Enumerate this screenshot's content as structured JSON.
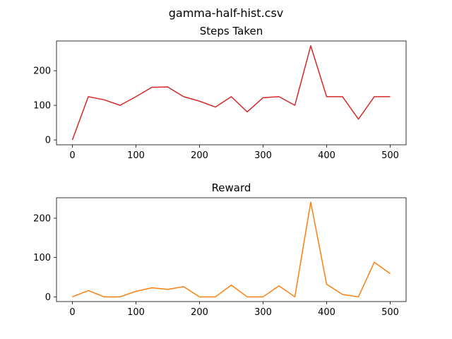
{
  "figure_title": "gamma-half-hist.csv",
  "chart_data": [
    {
      "type": "line",
      "title": "Steps Taken",
      "xlabel": "",
      "ylabel": "",
      "x": [
        0,
        25,
        50,
        75,
        100,
        125,
        150,
        175,
        200,
        225,
        250,
        275,
        300,
        325,
        350,
        375,
        400,
        425,
        450,
        475,
        500
      ],
      "series": [
        {
          "values": [
            0,
            125,
            116,
            100,
            125,
            152,
            153,
            125,
            112,
            95,
            125,
            81,
            122,
            125,
            100,
            272,
            125,
            125,
            60,
            125,
            125
          ],
          "color": "#d62728"
        }
      ],
      "xlim": [
        -25,
        525
      ],
      "ylim": [
        -14,
        286
      ],
      "xticks": [
        0,
        100,
        200,
        300,
        400,
        500
      ],
      "yticks": [
        0,
        100,
        200
      ],
      "grid": false
    },
    {
      "type": "line",
      "title": "Reward",
      "xlabel": "",
      "ylabel": "",
      "x": [
        0,
        25,
        50,
        75,
        100,
        125,
        150,
        175,
        200,
        225,
        250,
        275,
        300,
        325,
        350,
        375,
        400,
        425,
        450,
        475,
        500
      ],
      "series": [
        {
          "values": [
            0,
            16,
            0,
            0,
            14,
            23,
            19,
            26,
            0,
            0,
            30,
            0,
            0,
            28,
            0,
            241,
            32,
            6,
            0,
            88,
            59
          ],
          "color": "#ff7f0e"
        }
      ],
      "xlim": [
        -25,
        525
      ],
      "ylim": [
        -12,
        252
      ],
      "xticks": [
        0,
        100,
        200,
        300,
        400,
        500
      ],
      "yticks": [
        0,
        100,
        200
      ],
      "grid": false
    }
  ]
}
